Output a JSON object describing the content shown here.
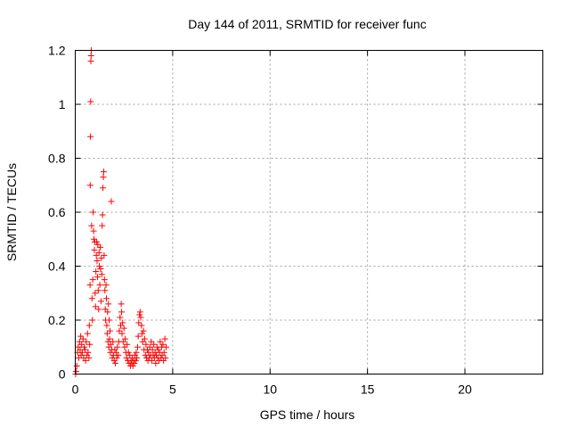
{
  "chart_data": {
    "type": "scatter",
    "title": "Day 144 of 2011, SRMTID for receiver func",
    "xlabel": "GPS time / hours",
    "ylabel": "SRMTID / TECUs",
    "xlim": [
      0,
      24
    ],
    "ylim": [
      0,
      1.2
    ],
    "x_ticks": [
      0,
      5,
      10,
      15,
      20
    ],
    "y_ticks": [
      0,
      0.2,
      0.4,
      0.6,
      0.8,
      1,
      1.2
    ],
    "x_tick_labels": [
      "0",
      "5",
      "10",
      "15",
      "20"
    ],
    "y_tick_labels": [
      "0",
      "0.2",
      "0.4",
      "0.6",
      "0.8",
      "1",
      "1.2"
    ],
    "grid": true,
    "marker": "+",
    "marker_color": "#ff0000",
    "series": [
      {
        "name": "SRMTID",
        "points": [
          [
            0.02,
            0.0
          ],
          [
            0.04,
            0.01
          ],
          [
            0.08,
            0.03
          ],
          [
            0.12,
            0.08
          ],
          [
            0.15,
            0.1
          ],
          [
            0.18,
            0.06
          ],
          [
            0.22,
            0.12
          ],
          [
            0.25,
            0.09
          ],
          [
            0.28,
            0.14
          ],
          [
            0.3,
            0.07
          ],
          [
            0.33,
            0.11
          ],
          [
            0.36,
            0.08
          ],
          [
            0.4,
            0.13
          ],
          [
            0.43,
            0.06
          ],
          [
            0.46,
            0.1
          ],
          [
            0.5,
            0.09
          ],
          [
            0.53,
            0.05
          ],
          [
            0.56,
            0.12
          ],
          [
            0.6,
            0.07
          ],
          [
            0.63,
            0.15
          ],
          [
            0.66,
            0.08
          ],
          [
            0.7,
            0.06
          ],
          [
            0.72,
            0.18
          ],
          [
            0.74,
            0.11
          ],
          [
            0.76,
            0.33
          ],
          [
            0.77,
            0.7
          ],
          [
            0.78,
            0.88
          ],
          [
            0.79,
            1.01
          ],
          [
            0.8,
            1.16
          ],
          [
            0.81,
            1.18
          ],
          [
            0.82,
            1.2
          ],
          [
            0.84,
            0.55
          ],
          [
            0.86,
            0.28
          ],
          [
            0.88,
            0.2
          ],
          [
            0.9,
            0.35
          ],
          [
            0.92,
            0.6
          ],
          [
            0.94,
            0.53
          ],
          [
            0.96,
            0.5
          ],
          [
            0.98,
            0.46
          ],
          [
            1.0,
            0.49
          ],
          [
            1.02,
            0.3
          ],
          [
            1.04,
            0.25
          ],
          [
            1.06,
            0.38
          ],
          [
            1.08,
            0.44
          ],
          [
            1.1,
            0.49
          ],
          [
            1.12,
            0.42
          ],
          [
            1.14,
            0.36
          ],
          [
            1.16,
            0.48
          ],
          [
            1.18,
            0.31
          ],
          [
            1.2,
            0.24
          ],
          [
            1.22,
            0.45
          ],
          [
            1.24,
            0.4
          ],
          [
            1.26,
            0.33
          ],
          [
            1.28,
            0.47
          ],
          [
            1.3,
            0.39
          ],
          [
            1.32,
            0.27
          ],
          [
            1.34,
            0.43
          ],
          [
            1.36,
            0.37
          ],
          [
            1.38,
            0.55
          ],
          [
            1.4,
            0.59
          ],
          [
            1.42,
            0.69
          ],
          [
            1.44,
            0.73
          ],
          [
            1.46,
            0.75
          ],
          [
            1.48,
            0.44
          ],
          [
            1.5,
            0.35
          ],
          [
            1.52,
            0.31
          ],
          [
            1.54,
            0.24
          ],
          [
            1.56,
            0.2
          ],
          [
            1.58,
            0.33
          ],
          [
            1.6,
            0.28
          ],
          [
            1.62,
            0.18
          ],
          [
            1.64,
            0.15
          ],
          [
            1.66,
            0.23
          ],
          [
            1.68,
            0.12
          ],
          [
            1.7,
            0.26
          ],
          [
            1.72,
            0.1
          ],
          [
            1.74,
            0.2
          ],
          [
            1.76,
            0.13
          ],
          [
            1.78,
            0.16
          ],
          [
            1.8,
            0.08
          ],
          [
            1.82,
            0.11
          ],
          [
            1.85,
            0.64
          ],
          [
            1.88,
            0.09
          ],
          [
            1.9,
            0.06
          ],
          [
            1.93,
            0.12
          ],
          [
            1.96,
            0.07
          ],
          [
            2.0,
            0.05
          ],
          [
            2.03,
            0.09
          ],
          [
            2.06,
            0.04
          ],
          [
            2.1,
            0.08
          ],
          [
            2.13,
            0.06
          ],
          [
            2.16,
            0.1
          ],
          [
            2.2,
            0.07
          ],
          [
            2.23,
            0.12
          ],
          [
            2.26,
            0.16
          ],
          [
            2.3,
            0.21
          ],
          [
            2.33,
            0.18
          ],
          [
            2.36,
            0.26
          ],
          [
            2.38,
            0.23
          ],
          [
            2.4,
            0.15
          ],
          [
            2.43,
            0.19
          ],
          [
            2.46,
            0.12
          ],
          [
            2.5,
            0.17
          ],
          [
            2.53,
            0.1
          ],
          [
            2.56,
            0.13
          ],
          [
            2.6,
            0.08
          ],
          [
            2.63,
            0.06
          ],
          [
            2.66,
            0.11
          ],
          [
            2.7,
            0.05
          ],
          [
            2.73,
            0.08
          ],
          [
            2.76,
            0.04
          ],
          [
            2.8,
            0.07
          ],
          [
            2.83,
            0.03
          ],
          [
            2.86,
            0.05
          ],
          [
            2.9,
            0.04
          ],
          [
            2.93,
            0.06
          ],
          [
            2.96,
            0.03
          ],
          [
            3.0,
            0.05
          ],
          [
            3.03,
            0.04
          ],
          [
            3.06,
            0.07
          ],
          [
            3.1,
            0.05
          ],
          [
            3.13,
            0.08
          ],
          [
            3.16,
            0.06
          ],
          [
            3.2,
            0.1
          ],
          [
            3.23,
            0.14
          ],
          [
            3.26,
            0.19
          ],
          [
            3.3,
            0.22
          ],
          [
            3.33,
            0.23
          ],
          [
            3.36,
            0.21
          ],
          [
            3.4,
            0.18
          ],
          [
            3.43,
            0.15
          ],
          [
            3.46,
            0.12
          ],
          [
            3.5,
            0.16
          ],
          [
            3.53,
            0.09
          ],
          [
            3.56,
            0.13
          ],
          [
            3.6,
            0.07
          ],
          [
            3.63,
            0.11
          ],
          [
            3.66,
            0.06
          ],
          [
            3.7,
            0.09
          ],
          [
            3.73,
            0.05
          ],
          [
            3.76,
            0.08
          ],
          [
            3.8,
            0.06
          ],
          [
            3.83,
            0.1
          ],
          [
            3.86,
            0.07
          ],
          [
            3.9,
            0.12
          ],
          [
            3.93,
            0.05
          ],
          [
            3.96,
            0.09
          ],
          [
            4.0,
            0.07
          ],
          [
            4.03,
            0.11
          ],
          [
            4.06,
            0.06
          ],
          [
            4.1,
            0.08
          ],
          [
            4.13,
            0.04
          ],
          [
            4.16,
            0.07
          ],
          [
            4.2,
            0.1
          ],
          [
            4.23,
            0.06
          ],
          [
            4.26,
            0.09
          ],
          [
            4.3,
            0.05
          ],
          [
            4.33,
            0.08
          ],
          [
            4.36,
            0.12
          ],
          [
            4.4,
            0.06
          ],
          [
            4.43,
            0.1
          ],
          [
            4.46,
            0.07
          ],
          [
            4.5,
            0.11
          ],
          [
            4.53,
            0.05
          ],
          [
            4.56,
            0.08
          ],
          [
            4.6,
            0.13
          ],
          [
            4.63,
            0.06
          ],
          [
            4.66,
            0.1
          ]
        ]
      }
    ]
  }
}
